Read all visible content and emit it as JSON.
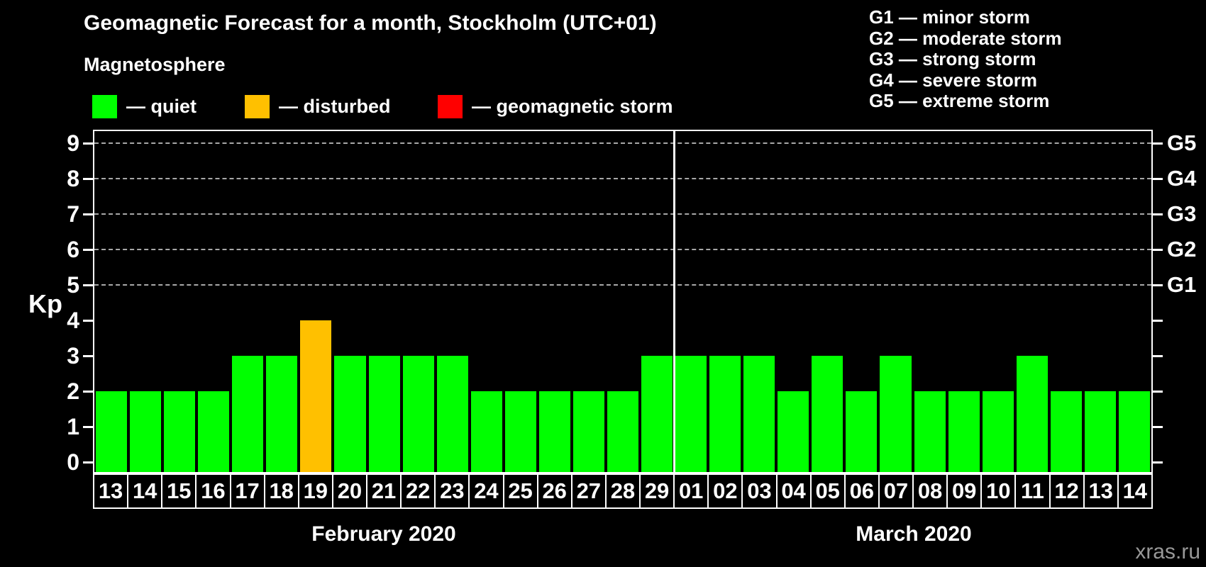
{
  "header": {
    "title": "Geomagnetic Forecast for a month, Stockholm (UTC+01)",
    "subtitle": "Magnetosphere"
  },
  "legend": {
    "items": [
      {
        "name": "quiet",
        "color": "#00ff00",
        "label": "— quiet"
      },
      {
        "name": "disturbed",
        "color": "#ffc000",
        "label": "— disturbed"
      },
      {
        "name": "storm",
        "color": "#ff0000",
        "label": "— geomagnetic storm"
      }
    ]
  },
  "g_legend": {
    "lines": [
      "G1 — minor storm",
      "G2 — moderate storm",
      "G3 — strong storm",
      "G4 — severe storm",
      "G5 — extreme storm"
    ]
  },
  "watermark": "xras.ru",
  "chart_data": {
    "type": "bar",
    "title": "Geomagnetic Forecast for a month, Stockholm (UTC+01)",
    "ylabel": "Kp",
    "ylim": [
      0,
      9
    ],
    "y_ticks": [
      0,
      1,
      2,
      3,
      4,
      5,
      6,
      7,
      8,
      9
    ],
    "gridlines_at": [
      5,
      6,
      7,
      8,
      9
    ],
    "grid": "dashed",
    "right_axis": [
      {
        "label": "G1",
        "kp": 5
      },
      {
        "label": "G2",
        "kp": 6
      },
      {
        "label": "G3",
        "kp": 7
      },
      {
        "label": "G4",
        "kp": 8
      },
      {
        "label": "G5",
        "kp": 9
      }
    ],
    "colors": {
      "quiet": "#00ff00",
      "disturbed": "#ffc000",
      "storm": "#ff0000"
    },
    "months": [
      {
        "label": "February 2020",
        "categories": [
          "13",
          "14",
          "15",
          "16",
          "17",
          "18",
          "19",
          "20",
          "21",
          "22",
          "23",
          "24",
          "25",
          "26",
          "27",
          "28",
          "29"
        ],
        "values": [
          2,
          2,
          2,
          2,
          3,
          3,
          4,
          3,
          3,
          3,
          3,
          2,
          2,
          2,
          2,
          2,
          3
        ],
        "states": [
          "quiet",
          "quiet",
          "quiet",
          "quiet",
          "quiet",
          "quiet",
          "disturbed",
          "quiet",
          "quiet",
          "quiet",
          "quiet",
          "quiet",
          "quiet",
          "quiet",
          "quiet",
          "quiet",
          "quiet"
        ]
      },
      {
        "label": "March 2020",
        "categories": [
          "01",
          "02",
          "03",
          "04",
          "05",
          "06",
          "07",
          "08",
          "09",
          "10",
          "11",
          "12",
          "13",
          "14"
        ],
        "values": [
          3,
          3,
          3,
          2,
          3,
          2,
          3,
          2,
          2,
          2,
          3,
          2,
          2,
          2
        ],
        "states": [
          "quiet",
          "quiet",
          "quiet",
          "quiet",
          "quiet",
          "quiet",
          "quiet",
          "quiet",
          "quiet",
          "quiet",
          "quiet",
          "quiet",
          "quiet",
          "quiet"
        ]
      }
    ]
  }
}
